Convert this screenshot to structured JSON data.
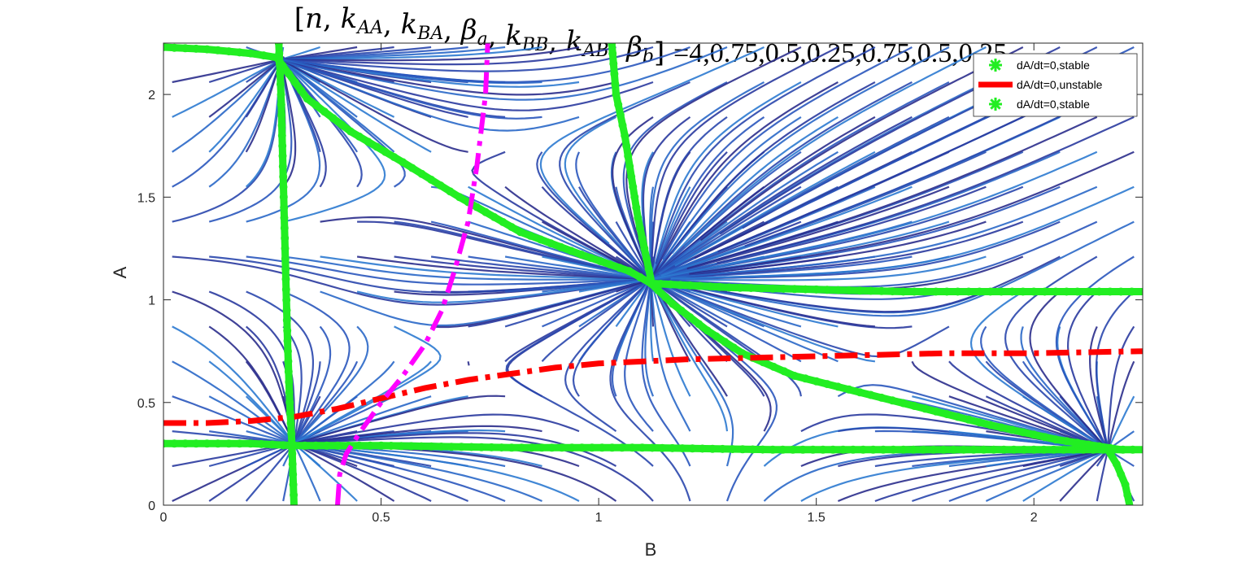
{
  "chart_data": {
    "type": "line",
    "title": "[n,k_AA,k_BA,β_a,k_BB,k_AB,β_b] =4,0.75,0.5,0.25,0.75,0.5,0.25",
    "title_main": "[n, k",
    "title_sub": [
      "AA",
      "BA",
      "a",
      "BB",
      "AB",
      "b"
    ],
    "title_values": "=4,0.75,0.5,0.25,0.75,0.5,0.25",
    "xlabel": "B",
    "ylabel": "A",
    "xlim": [
      0,
      2.25
    ],
    "ylim": [
      0,
      2.25
    ],
    "xticks": [
      0,
      0.5,
      1,
      1.5,
      2
    ],
    "xtick_labels": [
      "0",
      "0.5",
      "1",
      "1.5",
      "2"
    ],
    "yticks": [
      0,
      0.5,
      1,
      1.5,
      2
    ],
    "ytick_labels": [
      "0",
      "0.5",
      "1",
      "1.5",
      "2"
    ],
    "grid": false,
    "legend_position": "top-right",
    "colors": {
      "stable": "#22ee22",
      "unstable": "#ff0000",
      "nullcline_b": "#ff00ff",
      "stream": "#2b2d8c"
    },
    "series": [
      {
        "name": "dA/dt=0,stable",
        "style": "green-asterisk",
        "x": [
          0,
          0.1,
          0.2,
          0.26,
          0.33,
          0.43,
          0.55,
          0.68,
          0.82,
          0.96,
          1.07,
          1.12,
          1.17,
          1.25,
          1.33,
          1.45,
          1.6,
          1.75,
          1.9,
          2.05,
          2.2
        ],
        "y": [
          2.23,
          2.22,
          2.2,
          2.18,
          1.98,
          1.82,
          1.67,
          1.5,
          1.33,
          1.22,
          1.14,
          1.08,
          0.98,
          0.85,
          0.74,
          0.63,
          0.55,
          0.47,
          0.39,
          0.32,
          0.27
        ]
      },
      {
        "name": "dA/dt=0,unstable",
        "style": "red-dashdot",
        "x": [
          0,
          0.1,
          0.2,
          0.3,
          0.4,
          0.5,
          0.6,
          0.7,
          0.8,
          0.9,
          1.0,
          1.2,
          1.4,
          1.6,
          1.8,
          2.0,
          2.25
        ],
        "y": [
          0.4,
          0.4,
          0.41,
          0.43,
          0.47,
          0.52,
          0.57,
          0.61,
          0.64,
          0.67,
          0.69,
          0.71,
          0.72,
          0.73,
          0.74,
          0.74,
          0.75
        ]
      },
      {
        "name": "dA/dt=0,stable",
        "style": "green-asterisk",
        "x": [
          0,
          0.1,
          0.2,
          0.3,
          0.5,
          0.8,
          1.1,
          1.4,
          1.7,
          2.0,
          2.25
        ],
        "y": [
          0.3,
          0.3,
          0.3,
          0.29,
          0.29,
          0.28,
          0.28,
          0.27,
          0.27,
          0.27,
          0.27
        ]
      },
      {
        "name": "",
        "style": "green-asterisk",
        "x": [
          1.12,
          1.3,
          1.5,
          1.7,
          1.9,
          2.1,
          2.25
        ],
        "y": [
          1.08,
          1.06,
          1.05,
          1.04,
          1.04,
          1.04,
          1.04
        ]
      },
      {
        "name": "",
        "style": "green-asterisk",
        "x": [
          0.265,
          0.27,
          0.275,
          0.28,
          0.285,
          0.29,
          0.295,
          0.3
        ],
        "y": [
          2.25,
          2.0,
          1.6,
          1.2,
          0.8,
          0.5,
          0.3,
          0.0
        ]
      },
      {
        "name": "",
        "style": "green-asterisk",
        "x": [
          1.03,
          1.04,
          1.06,
          1.09,
          1.12
        ],
        "y": [
          2.25,
          2.0,
          1.8,
          1.4,
          1.1
        ]
      },
      {
        "name": "",
        "style": "green-asterisk",
        "x": [
          2.17,
          2.19,
          2.21,
          2.22
        ],
        "y": [
          0.27,
          0.2,
          0.1,
          0.0
        ]
      },
      {
        "name": "",
        "style": "magenta-dashdot",
        "x": [
          0.4,
          0.405,
          0.42,
          0.45,
          0.5,
          0.55,
          0.6,
          0.64,
          0.67,
          0.7,
          0.72,
          0.74,
          0.745
        ],
        "y": [
          0.0,
          0.15,
          0.25,
          0.35,
          0.5,
          0.63,
          0.78,
          0.95,
          1.15,
          1.38,
          1.65,
          2.0,
          2.25
        ]
      }
    ],
    "fixed_points": [
      {
        "x": 0.27,
        "y": 2.17
      },
      {
        "x": 1.12,
        "y": 1.1
      },
      {
        "x": 0.3,
        "y": 0.3
      },
      {
        "x": 2.17,
        "y": 0.27
      }
    ]
  }
}
